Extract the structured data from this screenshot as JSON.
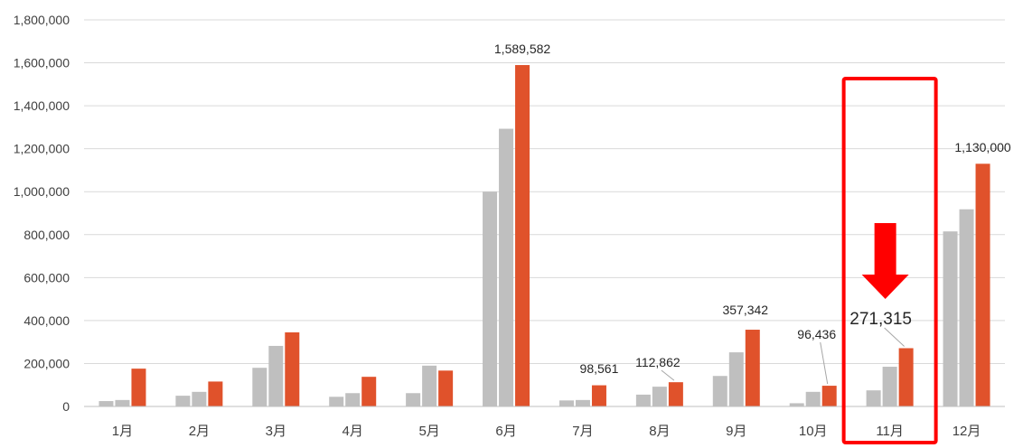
{
  "chart_data": {
    "type": "bar",
    "categories": [
      "1月",
      "2月",
      "3月",
      "4月",
      "5月",
      "6月",
      "7月",
      "8月",
      "9月",
      "10月",
      "11月",
      "12月"
    ],
    "series": [
      {
        "values": [
          25000,
          50000,
          180000,
          45000,
          62000,
          1000000,
          28000,
          55000,
          142000,
          15000,
          75000,
          815000
        ]
      },
      {
        "values": [
          30000,
          68000,
          282000,
          62000,
          190000,
          1293000,
          30000,
          92000,
          252000,
          68000,
          185000,
          918000
        ]
      },
      {
        "values": [
          176000,
          116000,
          345000,
          138000,
          167000,
          1589582,
          98561,
          112862,
          357342,
          96436,
          271315,
          1130000
        ]
      }
    ],
    "ylim": [
      0,
      1800000
    ],
    "yticks": [
      0,
      200000,
      400000,
      600000,
      800000,
      1000000,
      1200000,
      1400000,
      1600000,
      1800000
    ],
    "ytick_labels": [
      "0",
      "200,000",
      "400,000",
      "600,000",
      "800,000",
      "1,000,000",
      "1,200,000",
      "1,400,000",
      "1,600,000",
      "1,800,000"
    ],
    "grid": true,
    "data_labels": [
      {
        "category": "6月",
        "text": "1,589,582"
      },
      {
        "category": "7月",
        "text": "98,561"
      },
      {
        "category": "8月",
        "text": "112,862"
      },
      {
        "category": "9月",
        "text": "357,342"
      },
      {
        "category": "10月",
        "text": "96,436"
      },
      {
        "category": "11月",
        "text": "271,315"
      },
      {
        "category": "12月",
        "text": "1,130,000"
      }
    ],
    "highlight": {
      "category": "11月",
      "box_color": "#ff0000",
      "arrow_color": "#ff0000",
      "arrow_direction": "down"
    },
    "colors": {
      "series_gray": "#bfbfbf",
      "series_accent": "#e0522b",
      "grid": "#d9d9d9",
      "axis": "#bfbfbf"
    }
  }
}
